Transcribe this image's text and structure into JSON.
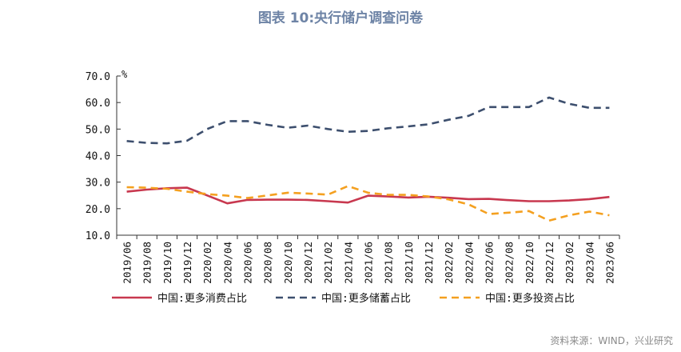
{
  "chart_data": {
    "type": "line",
    "title": "图表 10:央行储户调查问卷",
    "ylabel": "%",
    "ylim": [
      10,
      70
    ],
    "yticks": [
      "10.0",
      "20.0",
      "30.0",
      "40.0",
      "50.0",
      "60.0",
      "70.0"
    ],
    "ytick_values": [
      10,
      20,
      30,
      40,
      50,
      60,
      70
    ],
    "categories": [
      "2019/06",
      "2019/08",
      "2019/10",
      "2019/12",
      "2020/02",
      "2020/04",
      "2020/06",
      "2020/08",
      "2020/10",
      "2020/12",
      "2021/02",
      "2021/04",
      "2021/06",
      "2021/08",
      "2021/10",
      "2021/12",
      "2022/02",
      "2022/04",
      "2022/06",
      "2022/08",
      "2022/10",
      "2022/12",
      "2023/02",
      "2023/04",
      "2023/06"
    ],
    "series": [
      {
        "name": "中国:更多消费占比",
        "color": "#c8384f",
        "dash": "solid",
        "values": [
          26.4,
          27.2,
          27.7,
          27.9,
          25.0,
          22.0,
          23.3,
          23.4,
          23.4,
          23.3,
          22.8,
          22.3,
          24.9,
          24.6,
          24.2,
          24.5,
          24.1,
          23.6,
          23.7,
          23.2,
          22.8,
          22.8,
          23.1,
          23.6,
          24.4
        ]
      },
      {
        "name": "中国:更多储蓄占比",
        "color": "#3d4f6e",
        "dash": "dash",
        "values": [
          45.5,
          44.8,
          44.6,
          45.6,
          50.0,
          53.0,
          53.0,
          51.6,
          50.5,
          51.3,
          50.0,
          49.0,
          49.3,
          50.3,
          51.0,
          51.8,
          53.5,
          55.0,
          58.3,
          58.3,
          58.3,
          61.9,
          59.5,
          58.0,
          58.0
        ]
      },
      {
        "name": "中国:更多投资占比",
        "color": "#f4a020",
        "dash": "dash",
        "values": [
          28.1,
          27.9,
          27.5,
          26.4,
          25.5,
          24.9,
          24.0,
          25.0,
          26.0,
          25.7,
          25.3,
          28.5,
          26.0,
          25.2,
          25.2,
          24.6,
          23.5,
          21.6,
          18.0,
          18.5,
          19.1,
          15.5,
          17.5,
          18.9,
          17.5
        ]
      }
    ],
    "legend": "bottom",
    "grid": false
  },
  "source": "资料来源：WIND，兴业研究"
}
